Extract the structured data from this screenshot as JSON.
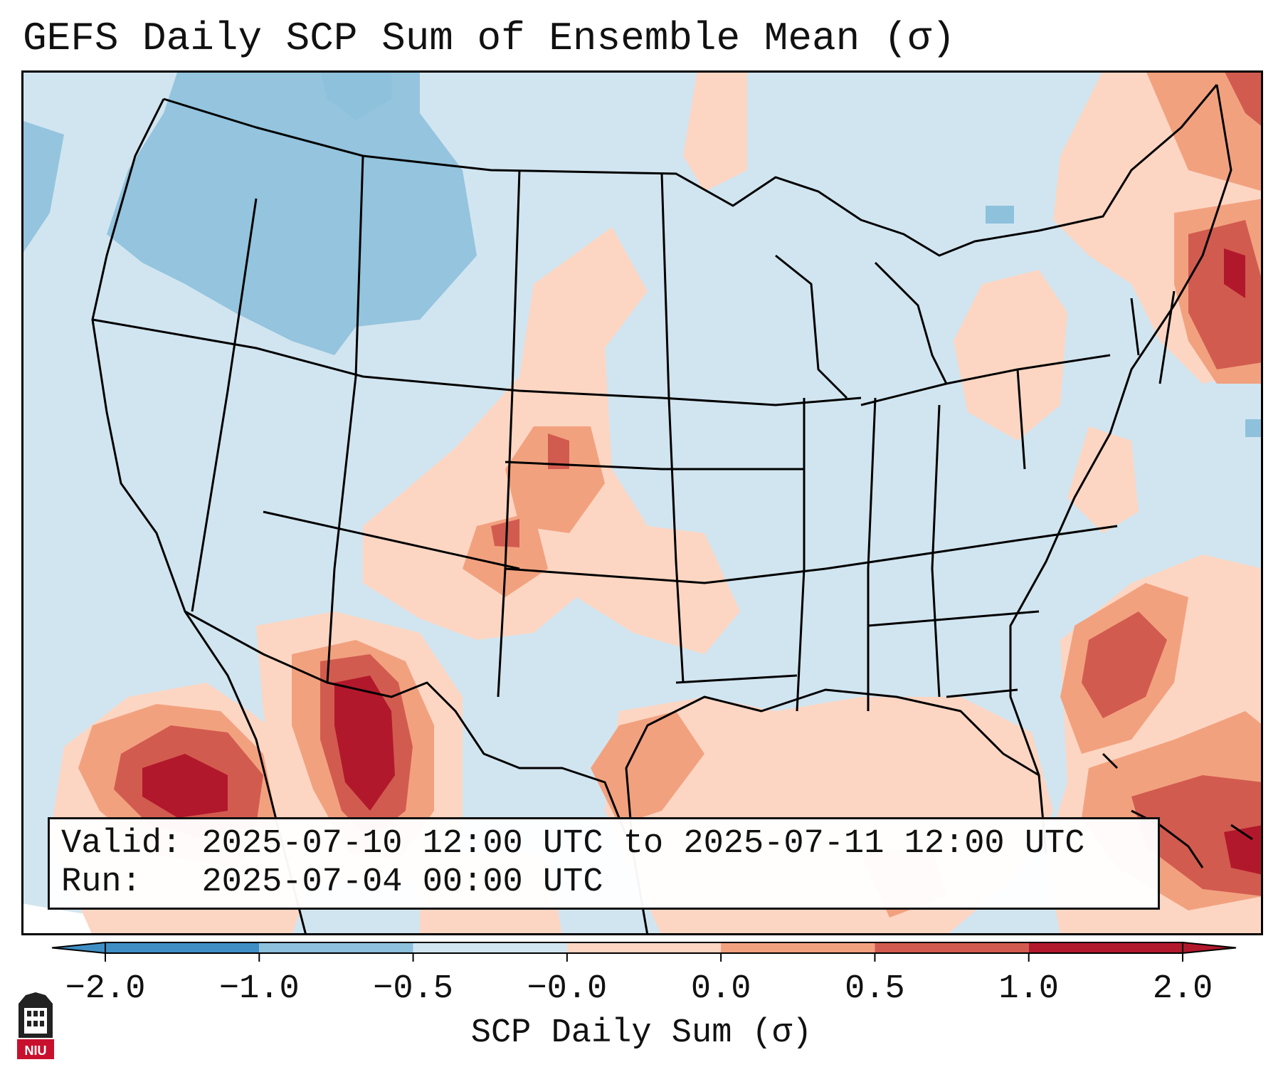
{
  "title": "GEFS Daily SCP Sum of Ensemble Mean (σ)",
  "info": {
    "valid_label": "Valid:",
    "valid_value": "2025-07-10 12:00 UTC to 2025-07-11 12:00 UTC",
    "run_label": "Run:",
    "run_value": "2025-07-04 00:00 UTC"
  },
  "colorbar": {
    "label": "SCP Daily Sum (σ)",
    "ticks": [
      "−2.0",
      "−1.0",
      "−0.5",
      "−0.0",
      "0.0",
      "0.5",
      "1.0",
      "2.0"
    ],
    "colors": [
      "#3f8fc5",
      "#8ec1dc",
      "#d1e5f0",
      "#f7f7f7",
      "#fcd6c3",
      "#f2a17f",
      "#d25b4f",
      "#b2182b"
    ],
    "extend": "both"
  },
  "logo": {
    "text": "NIU",
    "color": "#c8102e"
  },
  "anomalies": [
    {
      "name": "baja-pacific",
      "level": 2.0
    },
    {
      "name": "sonora-chihuahua",
      "level": 2.0
    },
    {
      "name": "western-atlantic",
      "level": 1.0
    },
    {
      "name": "bahamas-caribbean",
      "level": 1.0
    },
    {
      "name": "new-england",
      "level": 1.0
    },
    {
      "name": "high-plains",
      "level": 0.5
    },
    {
      "name": "gulf-of-mexico",
      "level": 0.5
    },
    {
      "name": "northwest",
      "level": -1.0
    }
  ]
}
